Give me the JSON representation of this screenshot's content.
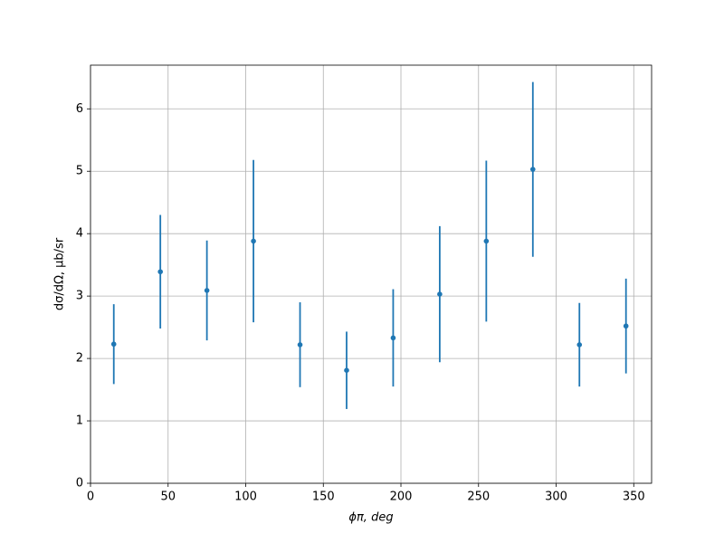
{
  "chart_data": {
    "type": "errorbar",
    "xlabel": "ϕπ, deg",
    "ylabel": "dσ/dΩ, μb/sr",
    "x": [
      15,
      45,
      75,
      105,
      135,
      165,
      195,
      225,
      255,
      285,
      315,
      345
    ],
    "values": [
      2.23,
      3.39,
      3.09,
      3.88,
      2.22,
      1.81,
      2.33,
      3.03,
      3.88,
      5.03,
      2.22,
      2.52
    ],
    "errors": [
      0.64,
      0.91,
      0.8,
      1.3,
      0.68,
      0.62,
      0.78,
      1.09,
      1.29,
      1.4,
      0.67,
      0.76
    ],
    "color": "#1f77b4",
    "xlim": [
      0,
      361.5
    ],
    "ylim": [
      0,
      6.7
    ],
    "xticks": [
      0,
      50,
      100,
      150,
      200,
      250,
      300,
      350
    ],
    "yticks": [
      0,
      1,
      2,
      3,
      4,
      5,
      6
    ],
    "grid": true
  }
}
